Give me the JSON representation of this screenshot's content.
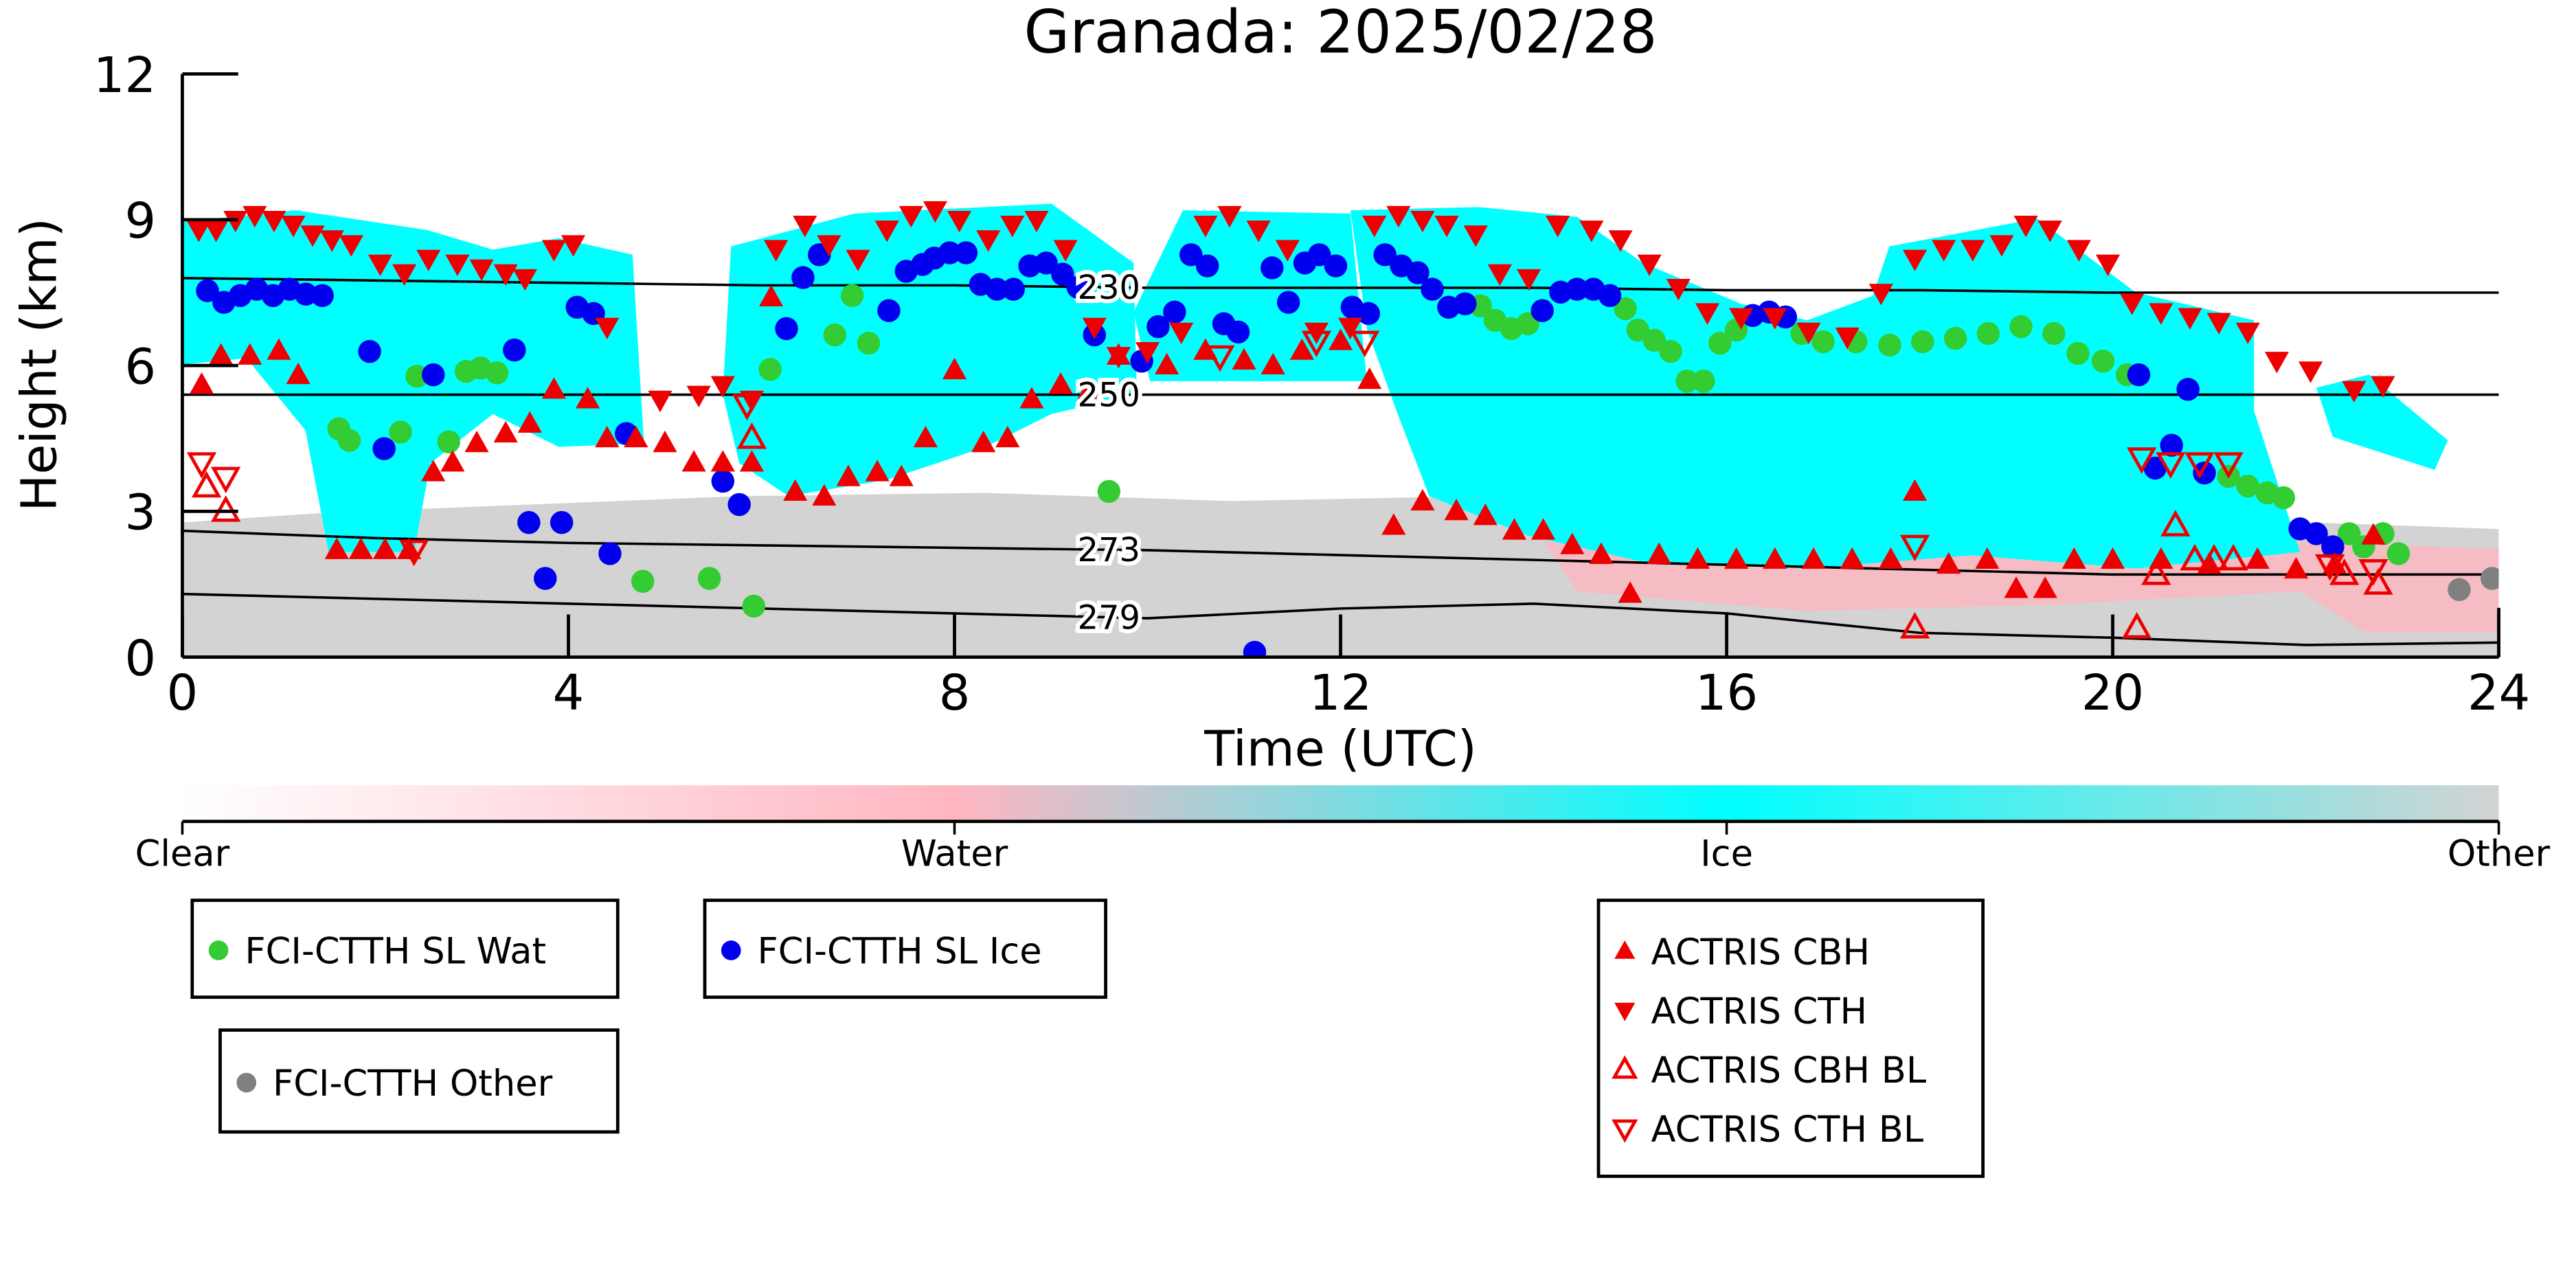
{
  "chart_data": {
    "type": "scatter",
    "title": "Granada: 2025/02/28",
    "x_label": "Time (UTC)",
    "y_label": "Height (km)",
    "xlim": [
      0,
      24
    ],
    "xticks": [
      0,
      4,
      8,
      12,
      16,
      20,
      24
    ],
    "ylim": [
      0,
      12
    ],
    "yticks": [
      0,
      3,
      6,
      9,
      12
    ],
    "colorbar": {
      "labels": [
        "Clear",
        "Water",
        "Ice",
        "Other"
      ],
      "colors": [
        "#ffffff",
        "#ffb6c1",
        "#00ffff",
        "#d3d3d3"
      ]
    },
    "contours": [
      {
        "label": "230",
        "x": [
          0,
          2,
          4,
          6,
          8,
          10,
          12,
          14,
          16,
          18,
          20,
          22,
          24
        ],
        "values": [
          7.8,
          7.75,
          7.7,
          7.65,
          7.65,
          7.6,
          7.6,
          7.6,
          7.55,
          7.55,
          7.5,
          7.5,
          7.5
        ]
      },
      {
        "label": "250",
        "x": [
          0,
          2,
          4,
          6,
          8,
          10,
          12,
          14,
          16,
          18,
          20,
          22,
          24
        ],
        "values": [
          5.4,
          5.4,
          5.4,
          5.4,
          5.4,
          5.4,
          5.4,
          5.4,
          5.4,
          5.4,
          5.4,
          5.4,
          5.4
        ]
      },
      {
        "label": "273",
        "x": [
          0,
          2,
          4,
          6,
          8,
          10,
          12,
          14,
          16,
          18,
          20,
          22,
          24
        ],
        "values": [
          2.6,
          2.45,
          2.35,
          2.3,
          2.25,
          2.2,
          2.1,
          2.0,
          1.9,
          1.8,
          1.7,
          1.7,
          1.7
        ]
      },
      {
        "label": "279",
        "x": [
          0,
          2,
          4,
          6,
          8,
          10,
          12,
          14,
          16,
          18,
          20,
          22,
          24
        ],
        "values": [
          1.3,
          1.2,
          1.1,
          1.0,
          0.9,
          0.8,
          1.0,
          1.1,
          0.9,
          0.5,
          0.4,
          0.25,
          0.3
        ]
      }
    ],
    "series": [
      {
        "name": "FCI-CTTH SL Wat",
        "color": "#33cc33",
        "marker": "circle",
        "filled": true,
        "x": [
          1.62,
          1.73,
          2.26,
          2.43,
          2.76,
          2.94,
          3.09,
          3.26,
          4.77,
          5.46,
          5.92,
          6.09,
          6.76,
          6.94,
          7.11,
          9.6,
          13.45,
          13.6,
          13.77,
          13.94,
          14.95,
          15.08,
          15.25,
          15.42,
          15.59,
          15.76,
          15.93,
          16.1,
          16.78,
          17.0,
          17.34,
          17.69,
          18.03,
          18.37,
          18.71,
          19.05,
          19.39,
          19.64,
          19.9,
          20.15,
          21.2,
          21.4,
          21.6,
          21.77,
          22.45,
          22.6,
          22.8,
          22.96
        ],
        "values": [
          4.7,
          4.46,
          4.63,
          5.78,
          4.43,
          5.88,
          5.95,
          5.85,
          1.56,
          1.62,
          1.05,
          5.92,
          6.63,
          7.44,
          6.46,
          3.41,
          7.23,
          6.93,
          6.76,
          6.86,
          7.17,
          6.73,
          6.52,
          6.29,
          5.68,
          5.68,
          6.46,
          6.73,
          6.66,
          6.49,
          6.49,
          6.42,
          6.49,
          6.56,
          6.66,
          6.8,
          6.66,
          6.25,
          6.09,
          5.81,
          3.72,
          3.52,
          3.38,
          3.28,
          2.54,
          2.27,
          2.54,
          2.13
        ]
      },
      {
        "name": "FCI-CTTH SL Ice",
        "color": "#0000ee",
        "marker": "circle",
        "filled": true,
        "x": [
          0.26,
          0.43,
          0.6,
          0.77,
          0.94,
          1.11,
          1.28,
          1.45,
          1.94,
          2.09,
          2.6,
          3.44,
          3.59,
          3.76,
          3.93,
          4.09,
          4.26,
          4.43,
          4.6,
          5.6,
          5.77,
          6.26,
          6.43,
          6.6,
          7.32,
          7.5,
          7.67,
          7.79,
          7.95,
          8.12,
          8.27,
          8.44,
          8.61,
          8.78,
          8.95,
          9.12,
          9.28,
          9.45,
          9.94,
          10.11,
          10.28,
          10.45,
          10.62,
          10.79,
          10.94,
          11.11,
          11.29,
          11.46,
          11.63,
          11.78,
          11.95,
          12.12,
          12.29,
          12.46,
          12.63,
          12.8,
          12.95,
          13.12,
          13.29,
          14.09,
          14.28,
          14.45,
          14.62,
          14.79,
          16.27,
          16.44,
          16.61,
          20.27,
          20.44,
          20.61,
          20.78,
          20.95,
          21.94,
          22.11,
          22.28
        ],
        "values": [
          7.54,
          7.3,
          7.44,
          7.57,
          7.44,
          7.57,
          7.47,
          7.44,
          6.29,
          4.29,
          5.81,
          6.32,
          2.77,
          1.62,
          2.77,
          7.2,
          7.07,
          2.13,
          4.6,
          3.62,
          3.14,
          6.76,
          7.81,
          8.28,
          7.13,
          7.94,
          8.08,
          8.21,
          8.32,
          8.32,
          7.67,
          7.57,
          7.57,
          8.05,
          8.11,
          7.88,
          7.61,
          6.63,
          6.09,
          6.8,
          7.1,
          8.28,
          8.05,
          6.86,
          6.69,
          0.1,
          8.01,
          7.3,
          8.11,
          8.28,
          8.05,
          7.2,
          7.07,
          8.28,
          8.05,
          7.91,
          7.57,
          7.2,
          7.27,
          7.13,
          7.51,
          7.57,
          7.57,
          7.44,
          7.03,
          7.1,
          7.0,
          5.81,
          3.89,
          4.36,
          5.51,
          3.79,
          2.64,
          2.54,
          2.27
        ]
      },
      {
        "name": "FCI-CTTH Other",
        "color": "#808080",
        "marker": "circle",
        "filled": true,
        "x": [
          23.59,
          23.93
        ],
        "values": [
          1.39,
          1.62
        ]
      },
      {
        "name": "ACTRIS CBH",
        "color": "#ee0000",
        "marker": "triangle-up",
        "filled": true,
        "x": [
          0.2,
          0.4,
          0.7,
          1.0,
          1.2,
          1.6,
          1.85,
          2.1,
          2.35,
          2.6,
          2.8,
          3.05,
          3.35,
          3.6,
          3.85,
          4.2,
          4.4,
          4.7,
          5.0,
          5.3,
          5.6,
          5.9,
          6.1,
          6.35,
          6.65,
          6.9,
          7.2,
          7.45,
          7.7,
          8.0,
          8.3,
          8.55,
          8.8,
          9.1,
          9.4,
          9.7,
          10.2,
          10.6,
          11.0,
          11.3,
          11.6,
          12.0,
          12.3,
          12.55,
          12.85,
          13.2,
          13.5,
          13.8,
          14.1,
          14.4,
          14.7,
          15.0,
          15.3,
          15.7,
          16.1,
          16.5,
          16.9,
          17.3,
          17.7,
          17.95,
          18.3,
          18.7,
          19.0,
          19.3,
          19.6,
          20.0,
          20.5,
          21.0,
          21.5,
          21.9,
          22.3,
          22.7
        ],
        "values": [
          5.6,
          6.2,
          6.2,
          6.3,
          5.8,
          2.2,
          2.2,
          2.2,
          2.2,
          3.8,
          4.0,
          4.4,
          4.6,
          4.8,
          5.5,
          5.3,
          4.5,
          4.5,
          4.4,
          4.0,
          4.0,
          4.0,
          7.4,
          3.4,
          3.3,
          3.7,
          3.8,
          3.7,
          4.5,
          5.9,
          4.4,
          4.5,
          5.3,
          5.6,
          5.5,
          6.2,
          6.0,
          6.3,
          6.1,
          6.0,
          6.3,
          6.5,
          5.7,
          2.7,
          3.2,
          3.0,
          2.9,
          2.6,
          2.6,
          2.3,
          2.1,
          1.3,
          2.1,
          2.0,
          2.0,
          2.0,
          2.0,
          2.0,
          2.0,
          3.4,
          1.9,
          2.0,
          1.4,
          1.4,
          2.0,
          2.0,
          2.0,
          1.9,
          2.0,
          1.8,
          1.9,
          2.5
        ]
      },
      {
        "name": "ACTRIS CTH",
        "color": "#ee0000",
        "marker": "triangle-down",
        "filled": true,
        "x": [
          0.17,
          0.35,
          0.55,
          0.75,
          0.95,
          1.15,
          1.35,
          1.55,
          1.75,
          2.05,
          2.3,
          2.55,
          2.85,
          3.1,
          3.35,
          3.55,
          3.85,
          4.05,
          4.4,
          4.95,
          5.35,
          5.6,
          5.9,
          6.15,
          6.45,
          6.7,
          7.0,
          7.3,
          7.55,
          7.8,
          8.05,
          8.35,
          8.6,
          8.85,
          9.15,
          9.45,
          9.7,
          10.0,
          10.35,
          10.6,
          10.85,
          11.15,
          11.45,
          11.75,
          12.1,
          12.35,
          12.6,
          12.85,
          13.1,
          13.4,
          13.65,
          13.95,
          14.25,
          14.6,
          14.9,
          15.2,
          15.5,
          15.8,
          16.15,
          16.5,
          16.85,
          17.25,
          17.6,
          17.95,
          18.25,
          18.55,
          18.85,
          19.1,
          19.35,
          19.65,
          19.95,
          20.2,
          20.5,
          20.8,
          21.1,
          21.4,
          21.7,
          22.05,
          22.5,
          22.8
        ],
        "values": [
          8.8,
          8.8,
          9.0,
          9.1,
          9.0,
          8.9,
          8.7,
          8.6,
          8.5,
          8.1,
          7.9,
          8.2,
          8.1,
          8.0,
          7.9,
          7.8,
          8.4,
          8.5,
          6.8,
          5.3,
          5.4,
          5.6,
          5.3,
          8.4,
          8.9,
          8.5,
          8.2,
          8.8,
          9.1,
          9.2,
          9.0,
          8.6,
          8.9,
          9.0,
          8.4,
          6.8,
          6.2,
          6.3,
          6.7,
          8.9,
          9.1,
          8.8,
          8.4,
          6.7,
          6.8,
          8.9,
          9.1,
          9.0,
          8.9,
          8.7,
          7.9,
          7.8,
          8.9,
          8.8,
          8.6,
          8.1,
          7.6,
          7.1,
          7.0,
          7.0,
          6.7,
          6.6,
          7.5,
          8.2,
          8.4,
          8.4,
          8.5,
          8.9,
          8.8,
          8.4,
          8.1,
          7.3,
          7.1,
          7.0,
          6.9,
          6.7,
          6.1,
          5.9,
          5.5,
          5.6
        ]
      },
      {
        "name": "ACTRIS CBH BL",
        "color": "#ee0000",
        "marker": "triangle-up",
        "filled": false,
        "x": [
          0.25,
          0.45,
          5.9,
          17.95,
          20.25,
          20.45,
          20.65,
          20.85,
          21.05,
          21.25,
          22.4,
          22.75
        ],
        "values": [
          3.5,
          3.0,
          4.5,
          0.6,
          0.6,
          1.7,
          2.7,
          2.0,
          2.0,
          2.0,
          1.7,
          1.5
        ]
      },
      {
        "name": "ACTRIS CTH BL",
        "color": "#ee0000",
        "marker": "triangle-down",
        "filled": false,
        "x": [
          0.2,
          0.45,
          2.4,
          5.85,
          10.75,
          11.75,
          12.25,
          17.95,
          20.3,
          20.6,
          20.9,
          21.2,
          22.25,
          22.7
        ],
        "values": [
          4.0,
          3.7,
          2.2,
          5.2,
          6.2,
          6.5,
          6.5,
          2.3,
          4.1,
          4.0,
          4.0,
          4.0,
          1.9,
          1.8
        ]
      }
    ]
  }
}
